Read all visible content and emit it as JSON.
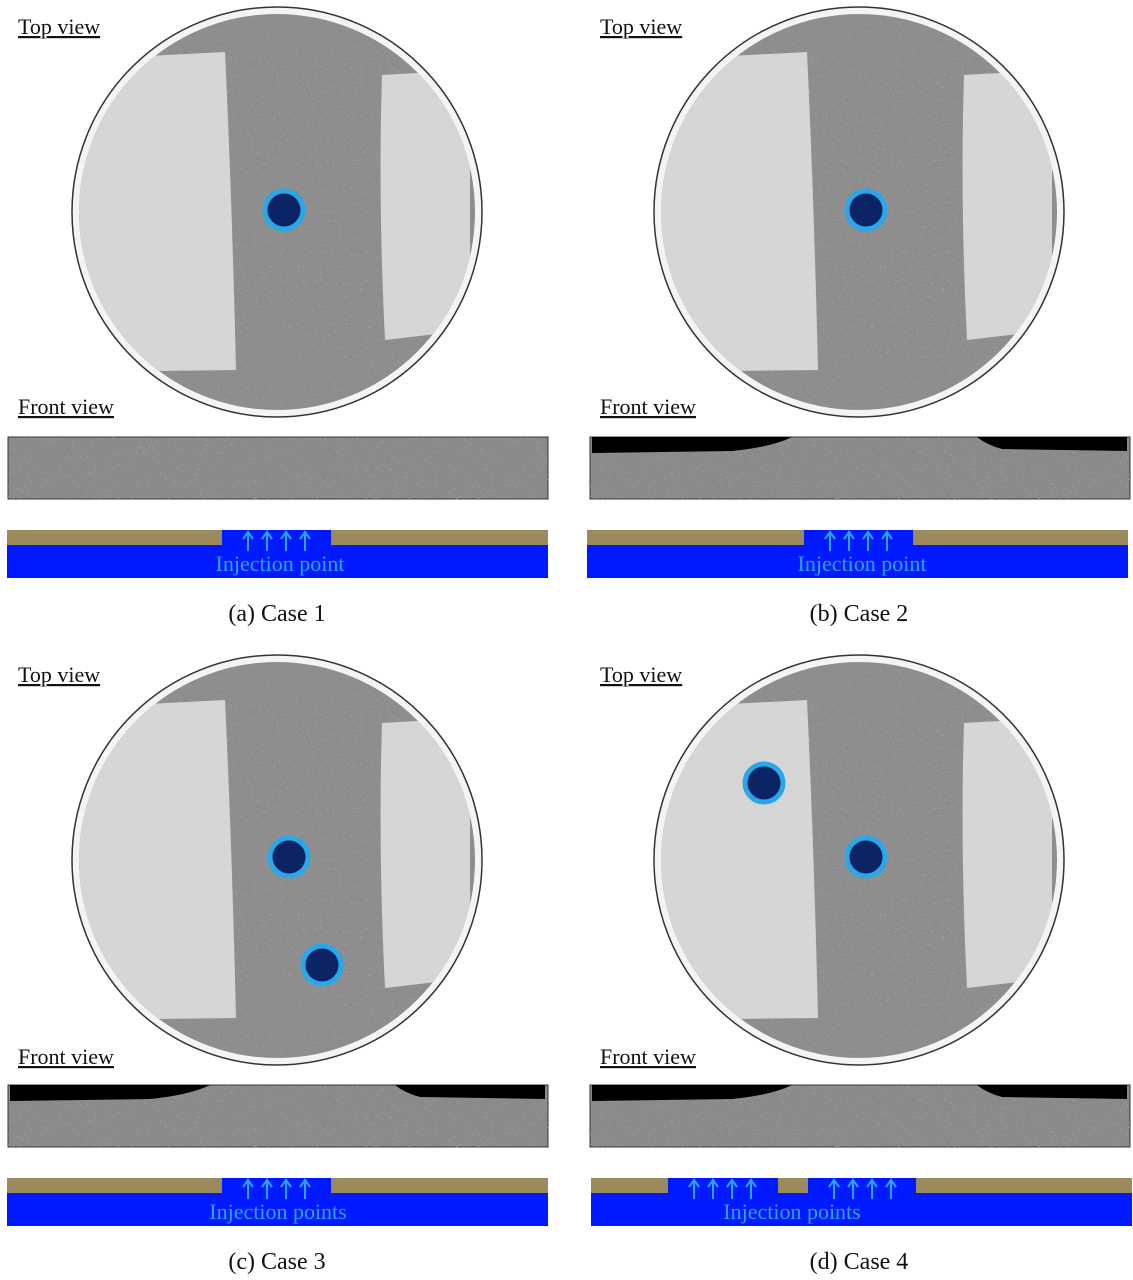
{
  "panels": [
    {
      "top_view_label": "Top view",
      "front_view_label": "Front view",
      "injection_label": "Injection point",
      "caption": "(a) Case 1"
    },
    {
      "top_view_label": "Top view",
      "front_view_label": "Front view",
      "injection_label": "Injection point",
      "caption": "(b) Case 2"
    },
    {
      "top_view_label": "Top view",
      "front_view_label": "Front view",
      "injection_label": "Injection points",
      "caption": "(c) Case 3"
    },
    {
      "top_view_label": "Top view",
      "front_view_label": "Front view",
      "injection_label": "Injection points",
      "caption": "(d) Case 4"
    }
  ]
}
